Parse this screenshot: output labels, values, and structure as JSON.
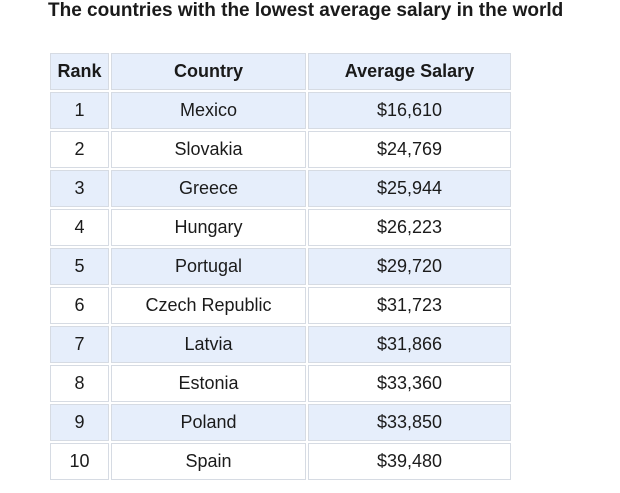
{
  "title": "The countries with the lowest average salary in the world",
  "table": {
    "headers": [
      "Rank",
      "Country",
      "Average Salary"
    ],
    "rows": [
      [
        "1",
        "Mexico",
        "$16,610"
      ],
      [
        "2",
        "Slovakia",
        "$24,769"
      ],
      [
        "3",
        "Greece",
        "$25,944"
      ],
      [
        "4",
        "Hungary",
        "$26,223"
      ],
      [
        "5",
        "Portugal",
        "$29,720"
      ],
      [
        "6",
        "Czech Republic",
        "$31,723"
      ],
      [
        "7",
        "Latvia",
        "$31,866"
      ],
      [
        "8",
        "Estonia",
        "$33,360"
      ],
      [
        "9",
        "Poland",
        "$33,850"
      ],
      [
        "10",
        "Spain",
        "$39,480"
      ]
    ]
  },
  "colors": {
    "shaded_row": "#e6eefb",
    "border": "#d6dbe3"
  }
}
